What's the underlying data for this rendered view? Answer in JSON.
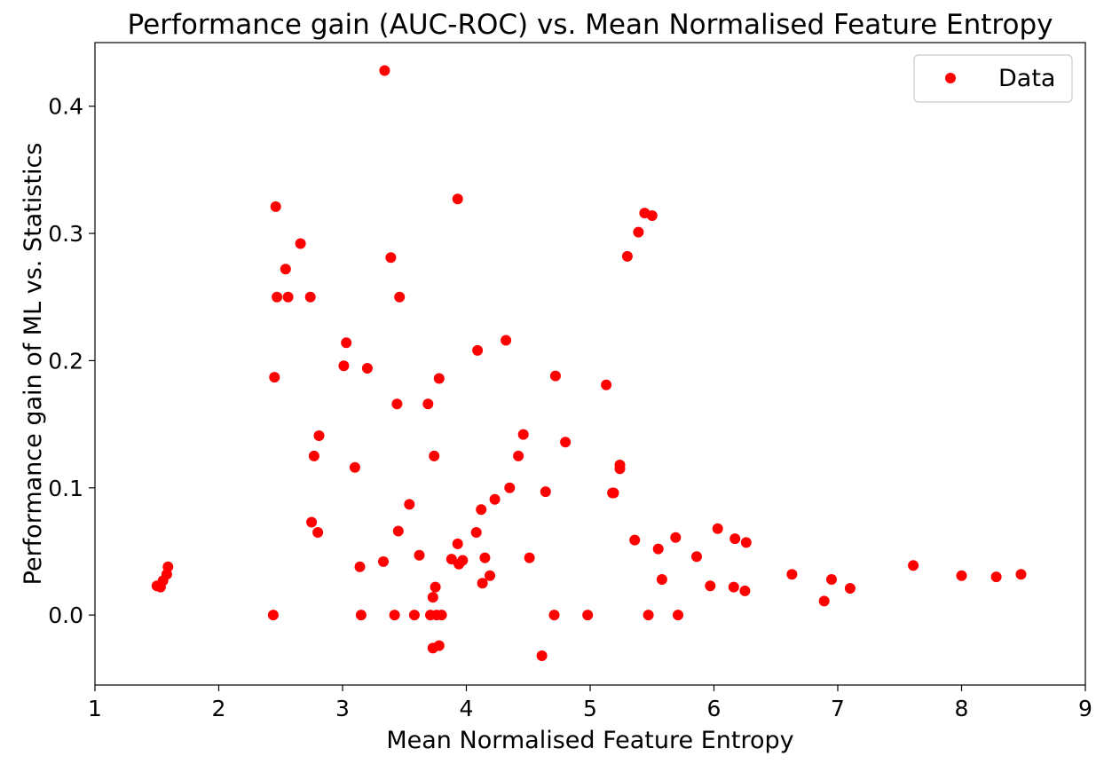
{
  "chart_data": {
    "type": "scatter",
    "title": "Performance gain (AUC-ROC) vs. Mean Normalised Feature Entropy",
    "xlabel": "Mean Normalised Feature Entropy",
    "ylabel": "Performance gain of ML vs. Statistics",
    "xlim": [
      1,
      9
    ],
    "ylim": [
      -0.055,
      0.45
    ],
    "x_ticks": [
      1,
      2,
      3,
      4,
      5,
      6,
      7,
      8,
      9
    ],
    "x_tick_labels": [
      "1",
      "2",
      "3",
      "4",
      "5",
      "6",
      "7",
      "8",
      "9"
    ],
    "y_ticks": [
      0.0,
      0.1,
      0.2,
      0.3,
      0.4
    ],
    "y_tick_labels": [
      "0.0",
      "0.1",
      "0.2",
      "0.3",
      "0.4"
    ],
    "grid": false,
    "legend_position": "top-right",
    "series": [
      {
        "name": "Data",
        "color": "#ff0000",
        "marker": "circle",
        "points": [
          [
            1.5,
            0.023
          ],
          [
            1.53,
            0.022
          ],
          [
            1.55,
            0.027
          ],
          [
            1.58,
            0.032
          ],
          [
            1.59,
            0.038
          ],
          [
            2.44,
            0.0
          ],
          [
            2.45,
            0.187
          ],
          [
            2.46,
            0.321
          ],
          [
            2.47,
            0.25
          ],
          [
            2.54,
            0.272
          ],
          [
            2.56,
            0.25
          ],
          [
            2.66,
            0.292
          ],
          [
            2.74,
            0.25
          ],
          [
            2.75,
            0.073
          ],
          [
            2.77,
            0.125
          ],
          [
            2.8,
            0.065
          ],
          [
            2.81,
            0.141
          ],
          [
            3.01,
            0.196
          ],
          [
            3.03,
            0.214
          ],
          [
            3.1,
            0.116
          ],
          [
            3.14,
            0.038
          ],
          [
            3.15,
            0.0
          ],
          [
            3.2,
            0.194
          ],
          [
            3.33,
            0.042
          ],
          [
            3.34,
            0.428
          ],
          [
            3.39,
            0.281
          ],
          [
            3.42,
            0.0
          ],
          [
            3.44,
            0.166
          ],
          [
            3.45,
            0.066
          ],
          [
            3.46,
            0.25
          ],
          [
            3.54,
            0.087
          ],
          [
            3.58,
            0.0
          ],
          [
            3.62,
            0.047
          ],
          [
            3.69,
            0.166
          ],
          [
            3.71,
            0.0
          ],
          [
            3.73,
            0.014
          ],
          [
            3.73,
            -0.026
          ],
          [
            3.74,
            0.125
          ],
          [
            3.75,
            0.022
          ],
          [
            3.76,
            0.0
          ],
          [
            3.78,
            0.186
          ],
          [
            3.78,
            -0.024
          ],
          [
            3.8,
            0.0
          ],
          [
            3.88,
            0.044
          ],
          [
            3.93,
            0.327
          ],
          [
            3.93,
            0.056
          ],
          [
            3.94,
            0.04
          ],
          [
            3.97,
            0.043
          ],
          [
            4.08,
            0.065
          ],
          [
            4.09,
            0.208
          ],
          [
            4.12,
            0.083
          ],
          [
            4.13,
            0.025
          ],
          [
            4.15,
            0.045
          ],
          [
            4.19,
            0.031
          ],
          [
            4.23,
            0.091
          ],
          [
            4.32,
            0.216
          ],
          [
            4.35,
            0.1
          ],
          [
            4.42,
            0.125
          ],
          [
            4.46,
            0.142
          ],
          [
            4.51,
            0.045
          ],
          [
            4.61,
            -0.032
          ],
          [
            4.64,
            0.097
          ],
          [
            4.71,
            0.0
          ],
          [
            4.72,
            0.188
          ],
          [
            4.8,
            0.136
          ],
          [
            4.98,
            0.0
          ],
          [
            5.13,
            0.181
          ],
          [
            5.18,
            0.096
          ],
          [
            5.19,
            0.096
          ],
          [
            5.24,
            0.118
          ],
          [
            5.24,
            0.115
          ],
          [
            5.3,
            0.282
          ],
          [
            5.36,
            0.059
          ],
          [
            5.39,
            0.301
          ],
          [
            5.44,
            0.316
          ],
          [
            5.47,
            0.0
          ],
          [
            5.5,
            0.314
          ],
          [
            5.55,
            0.052
          ],
          [
            5.58,
            0.028
          ],
          [
            5.69,
            0.061
          ],
          [
            5.71,
            0.0
          ],
          [
            5.86,
            0.046
          ],
          [
            5.97,
            0.023
          ],
          [
            6.03,
            0.068
          ],
          [
            6.16,
            0.022
          ],
          [
            6.17,
            0.06
          ],
          [
            6.25,
            0.019
          ],
          [
            6.26,
            0.057
          ],
          [
            6.63,
            0.032
          ],
          [
            6.89,
            0.011
          ],
          [
            6.95,
            0.028
          ],
          [
            7.1,
            0.021
          ],
          [
            7.61,
            0.039
          ],
          [
            8.0,
            0.031
          ],
          [
            8.28,
            0.03
          ],
          [
            8.48,
            0.032
          ]
        ]
      }
    ]
  }
}
